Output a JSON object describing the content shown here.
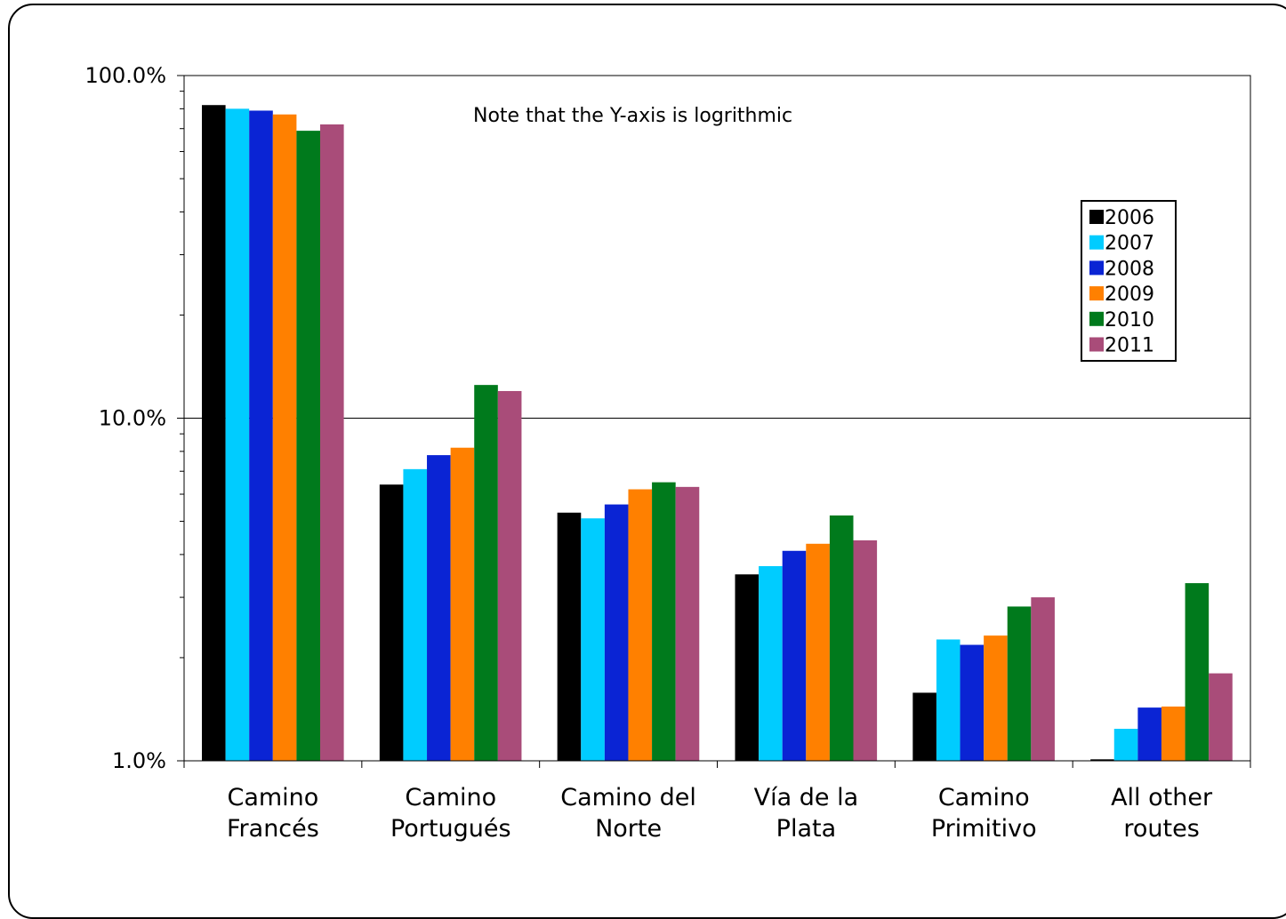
{
  "chart_data": {
    "type": "bar",
    "yscale": "log",
    "ylim": [
      0.01,
      1.0
    ],
    "yticks": [
      "1.0%",
      "10.0%",
      "100.0%"
    ],
    "categories": [
      [
        "Camino",
        "Francés"
      ],
      [
        "Camino",
        "Portugués"
      ],
      [
        "Camino del",
        "Norte"
      ],
      [
        "Vía de la",
        "Plata"
      ],
      [
        "Camino",
        "Primitivo"
      ],
      [
        "All other",
        "routes"
      ]
    ],
    "series": [
      {
        "name": "2006",
        "color": "#000000",
        "values": [
          0.82,
          0.064,
          0.053,
          0.035,
          0.0158,
          0.0101
        ]
      },
      {
        "name": "2007",
        "color": "#00CCFF",
        "values": [
          0.8,
          0.071,
          0.051,
          0.037,
          0.0226,
          0.0124
        ]
      },
      {
        "name": "2008",
        "color": "#0A24D4",
        "values": [
          0.79,
          0.078,
          0.056,
          0.041,
          0.0218,
          0.0143
        ]
      },
      {
        "name": "2009",
        "color": "#FF8000",
        "values": [
          0.77,
          0.082,
          0.062,
          0.043,
          0.0232,
          0.0144
        ]
      },
      {
        "name": "2010",
        "color": "#007A1C",
        "values": [
          0.69,
          0.125,
          0.065,
          0.052,
          0.0282,
          0.033
        ]
      },
      {
        "name": "2011",
        "color": "#A94C79",
        "values": [
          0.72,
          0.12,
          0.063,
          0.044,
          0.03,
          0.018
        ]
      }
    ],
    "annotation": "Note that the Y-axis is logrithmic",
    "legend": "right",
    "grid": "major"
  }
}
